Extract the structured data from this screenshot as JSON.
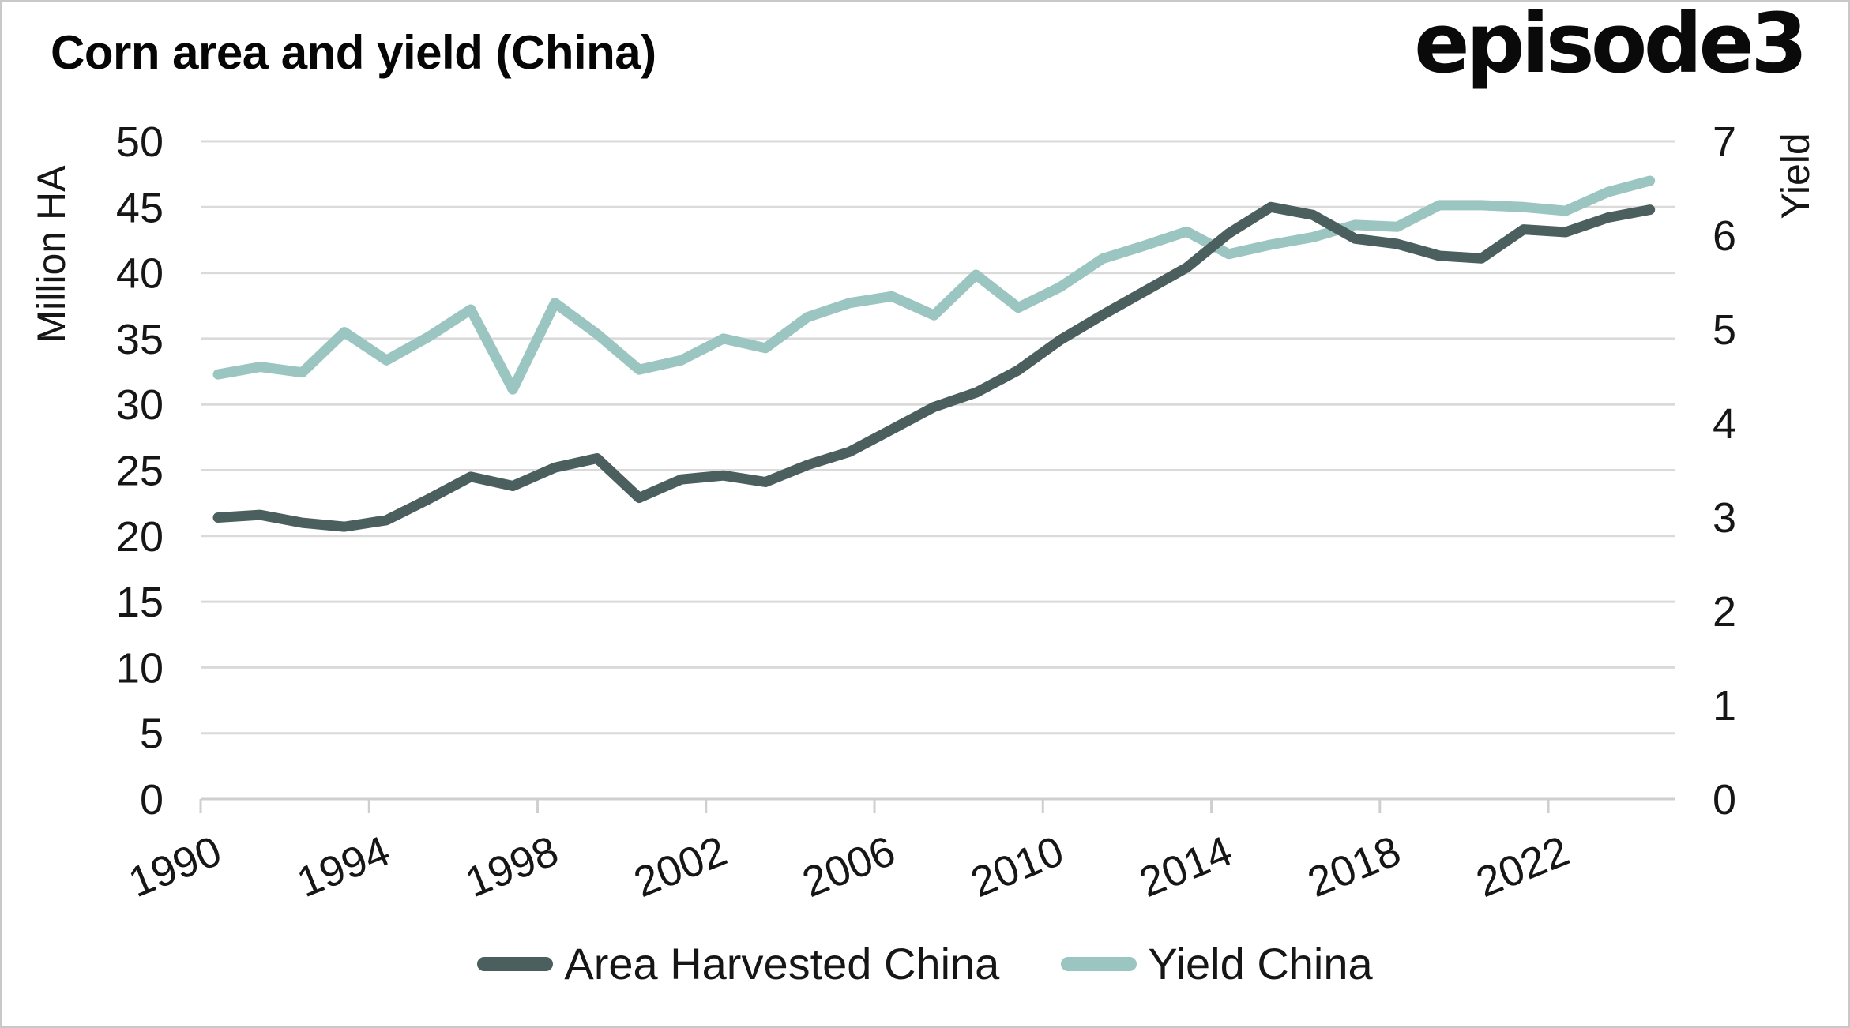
{
  "header": {
    "title": "Corn area and yield (China)",
    "logo": "episode3"
  },
  "chart_data": {
    "type": "line",
    "title": "Corn area and yield (China)",
    "x": [
      1990,
      1991,
      1992,
      1993,
      1994,
      1995,
      1996,
      1997,
      1998,
      1999,
      2000,
      2001,
      2002,
      2003,
      2004,
      2005,
      2006,
      2007,
      2008,
      2009,
      2010,
      2011,
      2012,
      2013,
      2014,
      2015,
      2016,
      2017,
      2018,
      2019,
      2020,
      2021,
      2022,
      2023,
      2024
    ],
    "series": [
      {
        "name": "Area Harvested China",
        "axis": "left",
        "color": "#4a5f5e",
        "values": [
          21.4,
          21.6,
          21.0,
          20.7,
          21.2,
          22.8,
          24.5,
          23.8,
          25.2,
          25.9,
          22.9,
          24.3,
          24.6,
          24.1,
          25.4,
          26.4,
          28.1,
          29.8,
          30.9,
          32.6,
          34.9,
          36.8,
          38.6,
          40.4,
          43.0,
          45.0,
          44.4,
          42.6,
          42.2,
          41.3,
          41.1,
          43.3,
          43.1,
          44.2,
          44.8
        ]
      },
      {
        "name": "Yield China",
        "axis": "right",
        "color": "#9ac5c1",
        "values": [
          4.52,
          4.6,
          4.54,
          4.97,
          4.67,
          4.92,
          5.21,
          4.36,
          5.28,
          4.95,
          4.57,
          4.67,
          4.9,
          4.8,
          5.13,
          5.28,
          5.35,
          5.15,
          5.58,
          5.23,
          5.45,
          5.75,
          5.89,
          6.04,
          5.8,
          5.9,
          5.98,
          6.11,
          6.09,
          6.32,
          6.32,
          6.3,
          6.26,
          6.46,
          6.58
        ]
      }
    ],
    "left_axis": {
      "label": "Million HA",
      "min": 0,
      "max": 50,
      "ticks": [
        0,
        5,
        10,
        15,
        20,
        25,
        30,
        35,
        40,
        45,
        50
      ]
    },
    "right_axis": {
      "label": "Yield",
      "min": 0,
      "max": 7,
      "ticks": [
        0,
        1,
        2,
        3,
        4,
        5,
        6,
        7
      ]
    },
    "x_ticks": [
      1990,
      1994,
      1998,
      2002,
      2006,
      2010,
      2014,
      2018,
      2022
    ],
    "grid": "horizontal",
    "grid_color": "#dadada",
    "axis_color": "#cfcfcf",
    "text_color": "#161616",
    "legend_position": "bottom-center"
  },
  "legend": {
    "items": [
      {
        "label": "Area Harvested China",
        "color": "#4a5f5e"
      },
      {
        "label": "Yield China",
        "color": "#9ac5c1"
      }
    ]
  }
}
